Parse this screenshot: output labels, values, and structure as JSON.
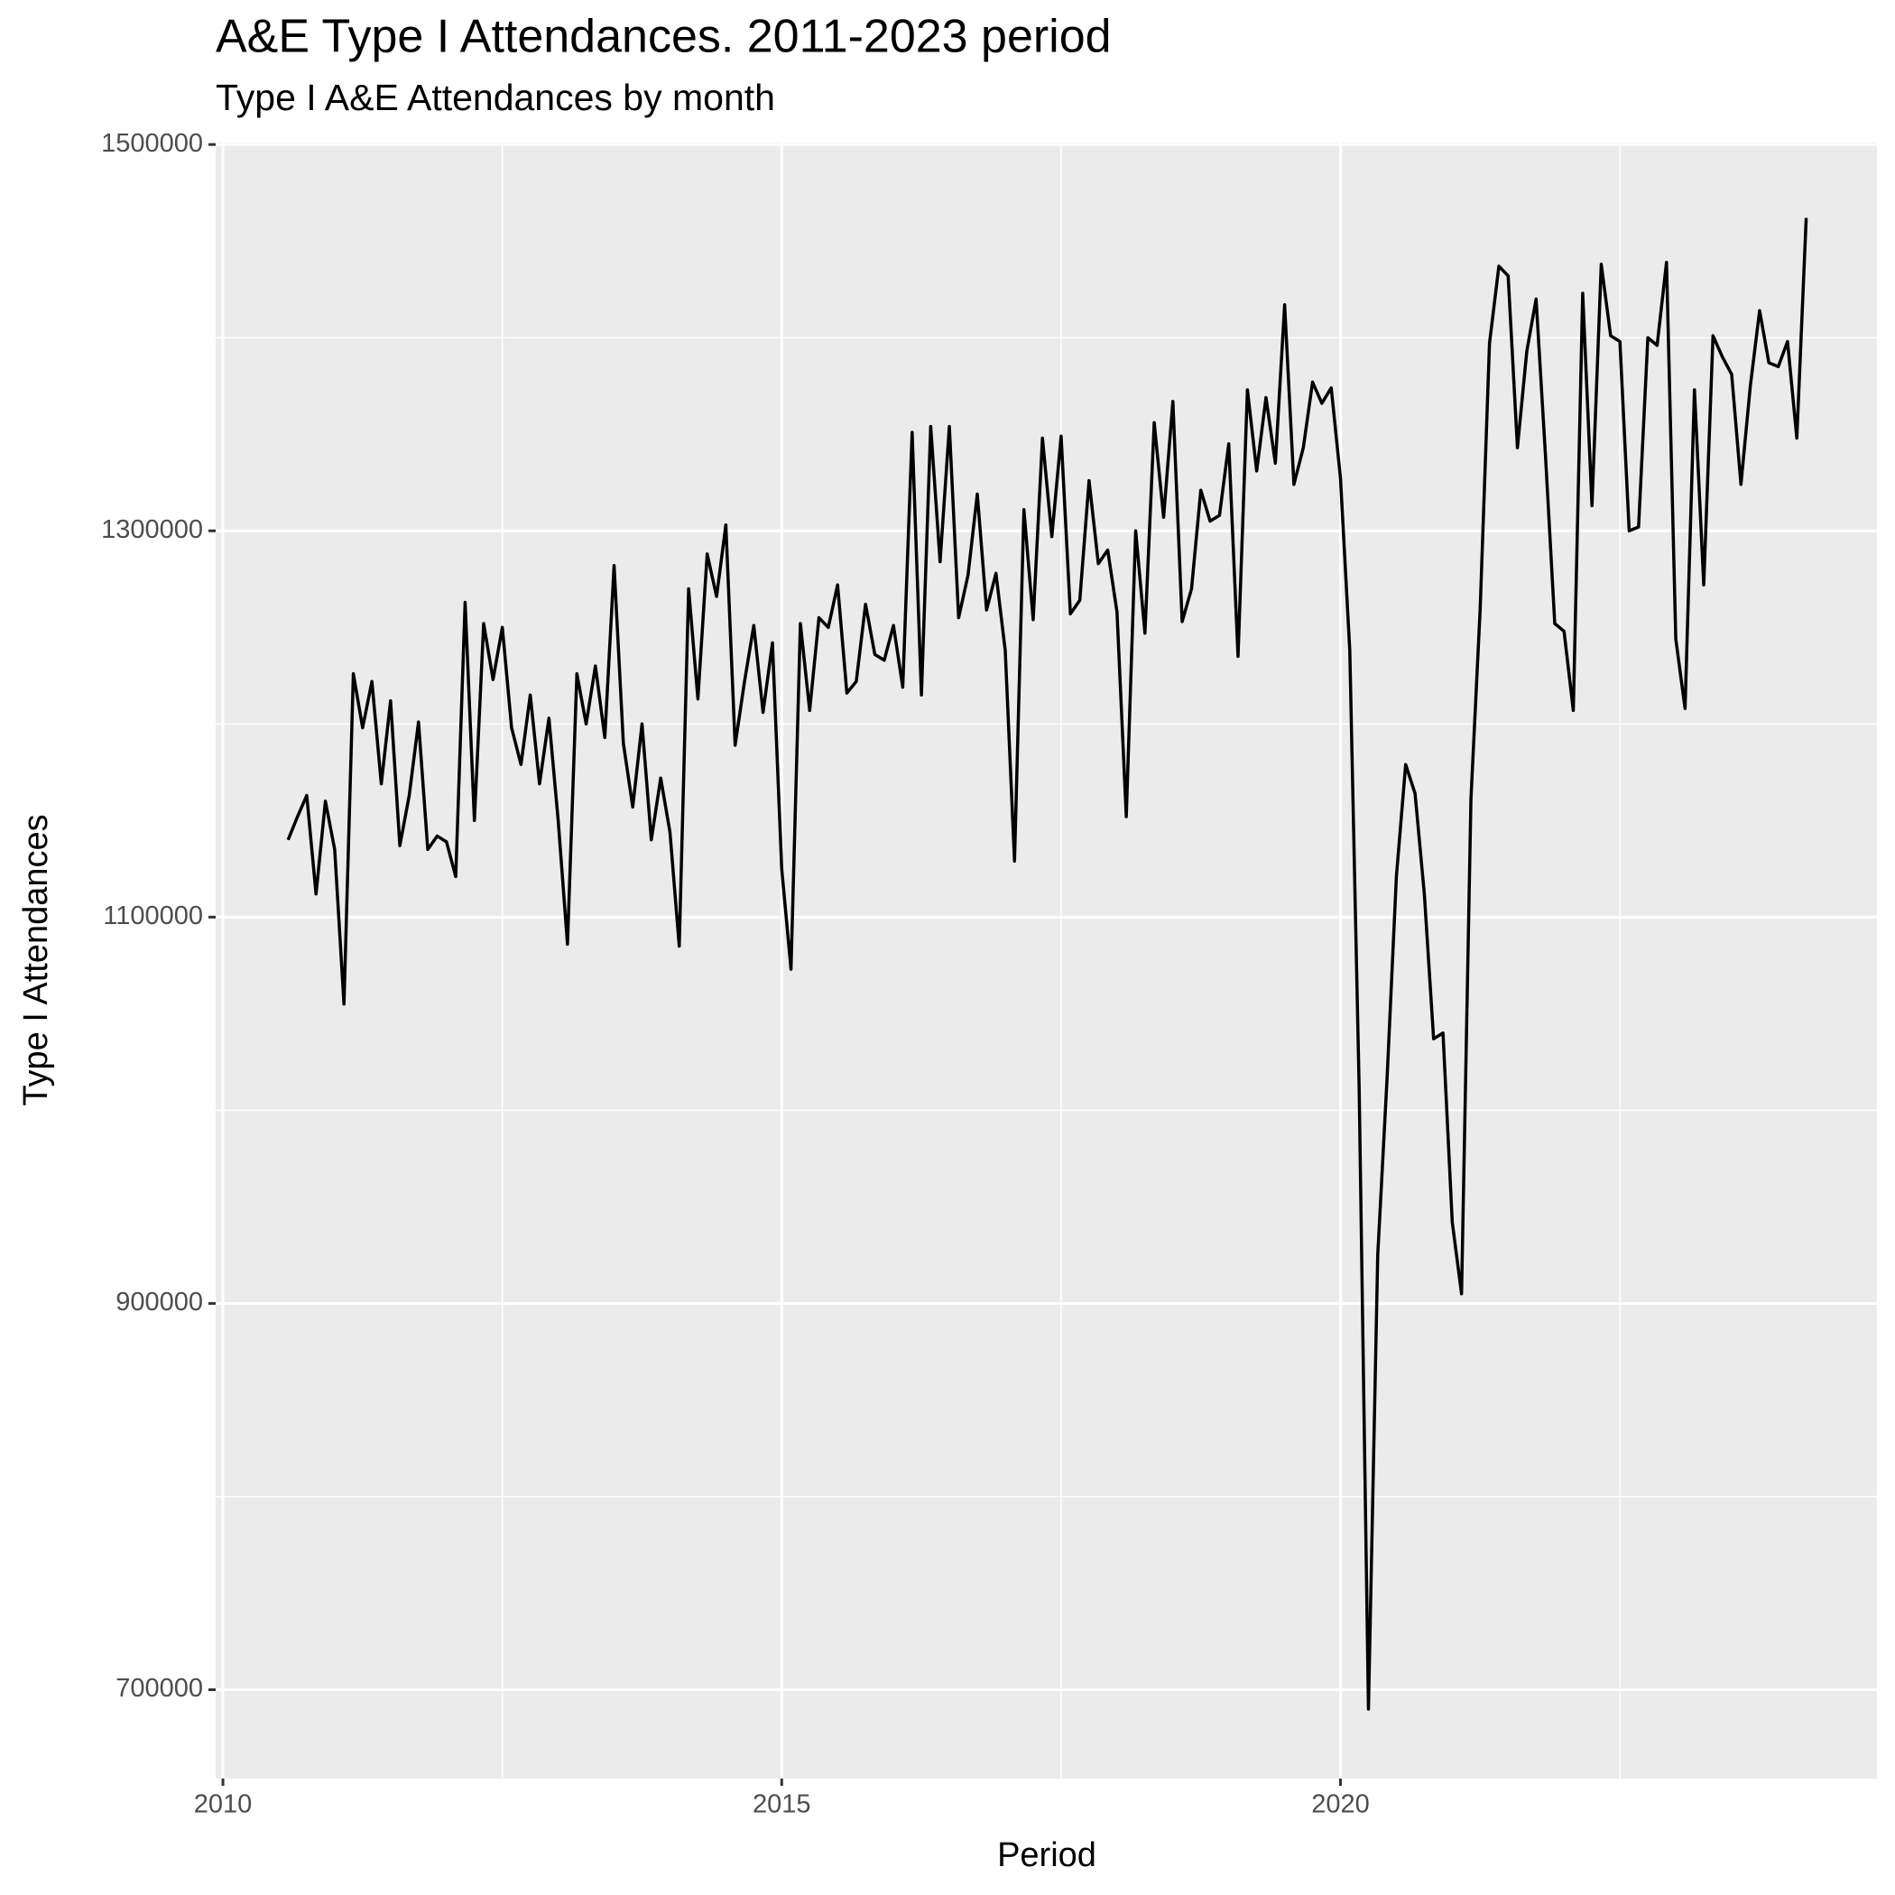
{
  "chart_data": {
    "type": "line",
    "title": "A&E Type I Attendances. 2011-2023 period",
    "subtitle": "Type I A&E Attendances by month",
    "x_label": "Period",
    "y_label": "Type I Attendances",
    "color": "#000000",
    "x": [
      2010.583,
      2010.667,
      2010.75,
      2010.833,
      2010.917,
      2011,
      2011.083,
      2011.167,
      2011.25,
      2011.333,
      2011.417,
      2011.5,
      2011.583,
      2011.667,
      2011.75,
      2011.833,
      2011.917,
      2012,
      2012.083,
      2012.167,
      2012.25,
      2012.333,
      2012.417,
      2012.5,
      2012.583,
      2012.667,
      2012.75,
      2012.833,
      2012.917,
      2013,
      2013.083,
      2013.167,
      2013.25,
      2013.333,
      2013.417,
      2013.5,
      2013.583,
      2013.667,
      2013.75,
      2013.833,
      2013.917,
      2014,
      2014.083,
      2014.167,
      2014.25,
      2014.333,
      2014.417,
      2014.5,
      2014.583,
      2014.667,
      2014.75,
      2014.833,
      2014.917,
      2015,
      2015.083,
      2015.167,
      2015.25,
      2015.333,
      2015.417,
      2015.5,
      2015.583,
      2015.667,
      2015.75,
      2015.833,
      2015.917,
      2016,
      2016.083,
      2016.167,
      2016.25,
      2016.333,
      2016.417,
      2016.5,
      2016.583,
      2016.667,
      2016.75,
      2016.833,
      2016.917,
      2017,
      2017.083,
      2017.167,
      2017.25,
      2017.333,
      2017.417,
      2017.5,
      2017.583,
      2017.667,
      2017.75,
      2017.833,
      2017.917,
      2018,
      2018.083,
      2018.167,
      2018.25,
      2018.333,
      2018.417,
      2018.5,
      2018.583,
      2018.667,
      2018.75,
      2018.833,
      2018.917,
      2019,
      2019.083,
      2019.167,
      2019.25,
      2019.333,
      2019.417,
      2019.5,
      2019.583,
      2019.667,
      2019.75,
      2019.833,
      2019.917,
      2020,
      2020.083,
      2020.167,
      2020.25,
      2020.333,
      2020.417,
      2020.5,
      2020.583,
      2020.667,
      2020.75,
      2020.833,
      2020.917,
      2021,
      2021.083,
      2021.167,
      2021.25,
      2021.333,
      2021.417,
      2021.5,
      2021.583,
      2021.667,
      2021.75,
      2021.833,
      2021.917,
      2022,
      2022.083,
      2022.167,
      2022.25,
      2022.333,
      2022.417,
      2022.5,
      2022.583,
      2022.667,
      2022.75,
      2022.833,
      2022.917,
      2023,
      2023.083,
      2023.167,
      2023.25,
      2023.333,
      2023.417,
      2023.5,
      2023.583,
      2023.667,
      2023.75,
      2023.833,
      2023.917,
      2024,
      2024.083,
      2024.167
    ],
    "values": [
      1140000,
      1152000,
      1163000,
      1112000,
      1160000,
      1135000,
      1055000,
      1226000,
      1198000,
      1222000,
      1169000,
      1212000,
      1137000,
      1163000,
      1201000,
      1135000,
      1142000,
      1139000,
      1121000,
      1263000,
      1150000,
      1252000,
      1223000,
      1250000,
      1198000,
      1179000,
      1215000,
      1169000,
      1203000,
      1150000,
      1086000,
      1226000,
      1200000,
      1230000,
      1193000,
      1282000,
      1190000,
      1157000,
      1200000,
      1140000,
      1172000,
      1144000,
      1085000,
      1270000,
      1213000,
      1288000,
      1266000,
      1303000,
      1189000,
      1222000,
      1251000,
      1206000,
      1242000,
      1125000,
      1073000,
      1252000,
      1207000,
      1255000,
      1250000,
      1272000,
      1216000,
      1222000,
      1262000,
      1236000,
      1233000,
      1251000,
      1219000,
      1351000,
      1215000,
      1354000,
      1284000,
      1354000,
      1255000,
      1277000,
      1319000,
      1259000,
      1278000,
      1238000,
      1129000,
      1311000,
      1254000,
      1348000,
      1297000,
      1349000,
      1257000,
      1264000,
      1326000,
      1283000,
      1290000,
      1258000,
      1152000,
      1300000,
      1247000,
      1356000,
      1307000,
      1367000,
      1253000,
      1270000,
      1321000,
      1305000,
      1308000,
      1345000,
      1235000,
      1373000,
      1331000,
      1369000,
      1335000,
      1417000,
      1324000,
      1343000,
      1377000,
      1366000,
      1374000,
      1327000,
      1238000,
      1011000,
      690000,
      925000,
      1017000,
      1121000,
      1179000,
      1164000,
      1112000,
      1037000,
      1040000,
      942000,
      905000,
      1161000,
      1260000,
      1397000,
      1437000,
      1432000,
      1343000,
      1393000,
      1420000,
      1340000,
      1252000,
      1248000,
      1207000,
      1423000,
      1313000,
      1438000,
      1401000,
      1398000,
      1300000,
      1302000,
      1400000,
      1396000,
      1439000,
      1244000,
      1208000,
      1373000,
      1272000,
      1401000,
      1390000,
      1381000,
      1324000,
      1375000,
      1414000,
      1387000,
      1385000,
      1398000,
      1348000,
      1462000
    ],
    "xlim": [
      2009.935,
      2024.8
    ],
    "ylim": [
      654000,
      1501000
    ],
    "xticks": [
      2010,
      2015,
      2020
    ],
    "yticks": [
      700000,
      900000,
      1100000,
      1300000,
      1500000
    ],
    "x_minor_grid": [
      2012.5,
      2017.5,
      2022.5
    ],
    "y_minor_grid": [
      800000,
      1000000,
      1200000,
      1400000
    ],
    "grid": true
  }
}
